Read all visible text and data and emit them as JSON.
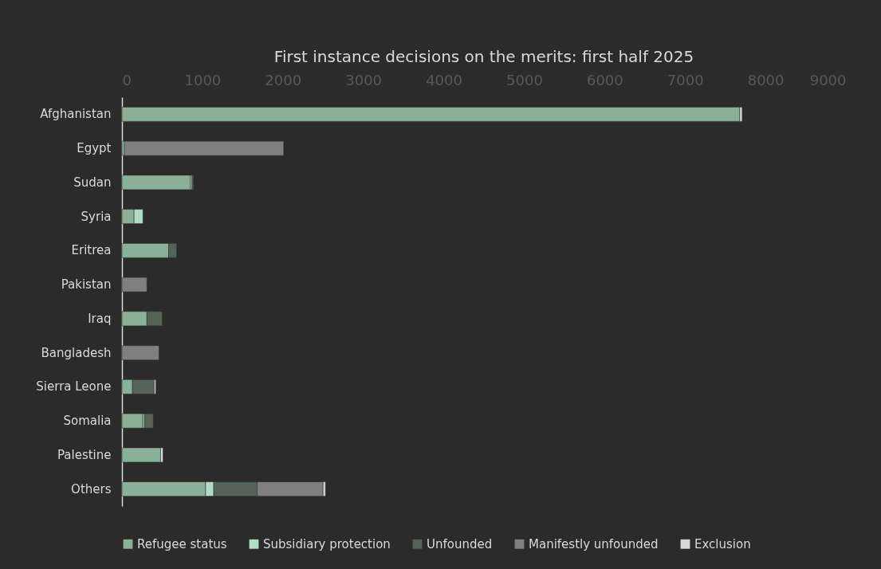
{
  "chart_data": {
    "type": "bar",
    "orientation": "horizontal",
    "stacked": true,
    "title": "First instance decisions on the merits: first half 2025",
    "categories": [
      "Afghanistan",
      "Egypt",
      "Sudan",
      "Syria",
      "Eritrea",
      "Pakistan",
      "Iraq",
      "Bangladesh",
      "Sierra Leone",
      "Somalia",
      "Palestine",
      "Others"
    ],
    "series": [
      {
        "name": "Refugee status",
        "color": "#8ab09a",
        "values": [
          7680,
          30,
          850,
          150,
          580,
          null,
          310,
          null,
          130,
          260,
          480,
          1040
        ]
      },
      {
        "name": "Subsidiary protection",
        "color": "#b3dcc6",
        "values": [
          null,
          null,
          20,
          110,
          null,
          null,
          null,
          null,
          null,
          20,
          null,
          100
        ]
      },
      {
        "name": "Unfounded",
        "color": "#566359",
        "values": [
          null,
          null,
          20,
          null,
          100,
          null,
          190,
          null,
          270,
          110,
          null,
          540
        ]
      },
      {
        "name": "Manifestly unfounded",
        "color": "#808080",
        "values": [
          null,
          1980,
          null,
          null,
          null,
          310,
          null,
          460,
          null,
          null,
          null,
          820
        ]
      },
      {
        "name": "Exclusion",
        "color": "#d9d9d9",
        "values": [
          30,
          null,
          null,
          null,
          null,
          null,
          null,
          null,
          20,
          null,
          30,
          30
        ]
      }
    ],
    "xlim": [
      0,
      9000
    ],
    "xticks": [
      0,
      1000,
      2000,
      3000,
      4000,
      5000,
      6000,
      7000,
      8000,
      9000
    ],
    "grid": false,
    "legend": "bottom"
  }
}
